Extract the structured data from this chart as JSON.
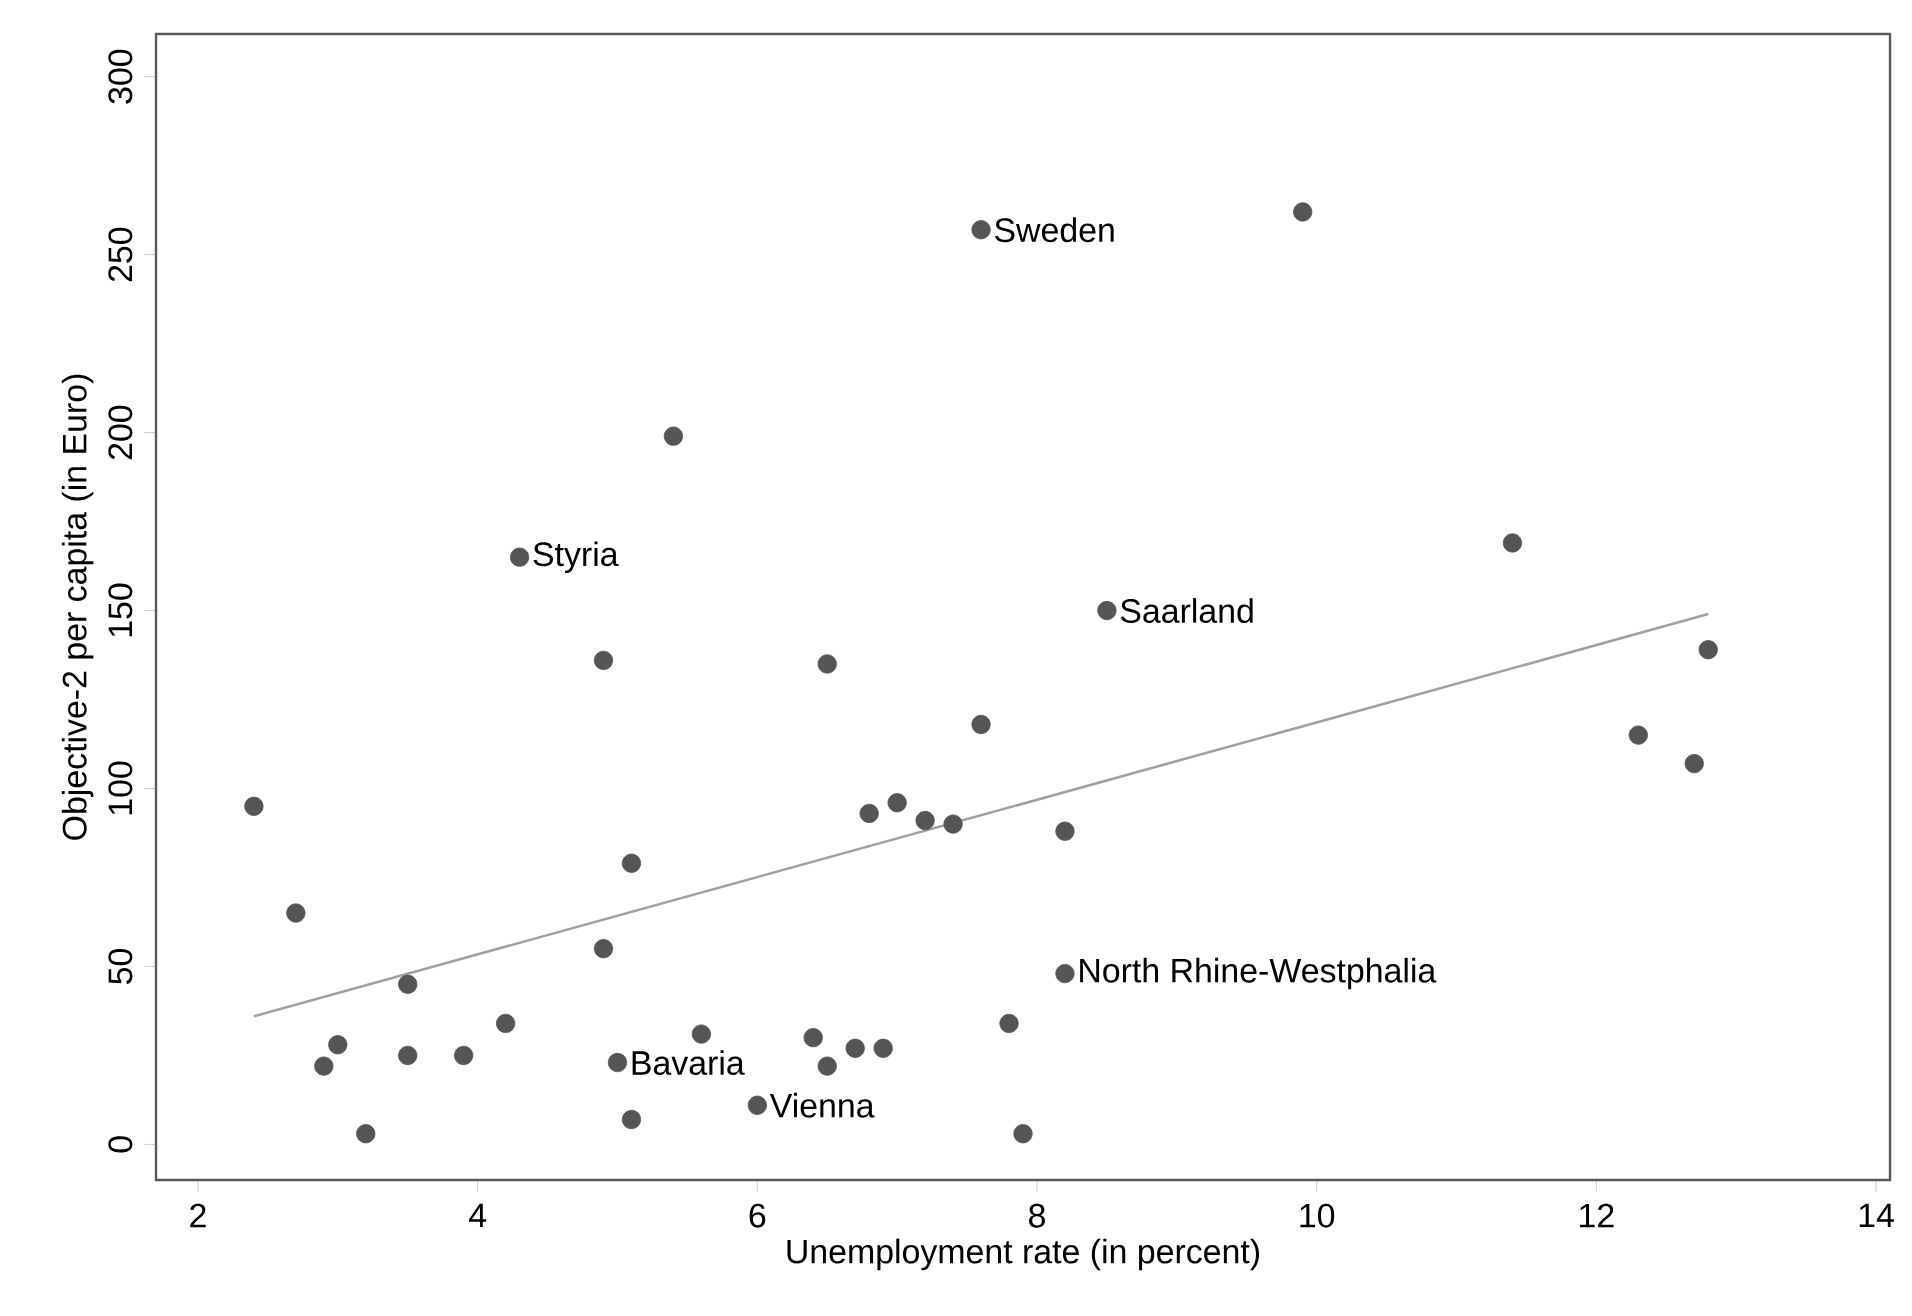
{
  "chart_data": {
    "type": "scatter",
    "xlabel": "Unemployment rate (in percent)",
    "ylabel": "Objective-2 per capita (in Euro)",
    "xlim": [
      1.7,
      14.1
    ],
    "ylim": [
      -10,
      312
    ],
    "xticks": [
      2,
      4,
      6,
      8,
      10,
      12,
      14
    ],
    "yticks": [
      0,
      50,
      100,
      150,
      200,
      250,
      300
    ],
    "grid": false,
    "marker": "circle",
    "series": [
      {
        "color": "#555555",
        "x": [
          2.4,
          2.7,
          2.9,
          3.0,
          3.2,
          3.5,
          3.5,
          3.9,
          4.2,
          4.3,
          4.9,
          4.9,
          5.0,
          5.1,
          5.1,
          5.4,
          5.6,
          6.0,
          6.4,
          6.5,
          6.5,
          6.7,
          6.8,
          6.9,
          7.0,
          7.2,
          7.4,
          7.6,
          7.6,
          7.8,
          7.9,
          8.2,
          8.2,
          8.5,
          9.9,
          11.4,
          12.3,
          12.7,
          12.8
        ],
        "values": [
          95,
          65,
          22,
          28,
          3,
          45,
          25,
          25,
          34,
          165,
          136,
          55,
          23,
          79,
          7,
          199,
          31,
          11,
          30,
          22,
          135,
          27,
          93,
          27,
          96,
          91,
          90,
          118,
          257,
          34,
          3,
          88,
          48,
          150,
          262,
          169,
          115,
          107,
          139
        ]
      },
      {
        "type": "line",
        "color": "#a0a0a0",
        "marker": "none",
        "x": [
          2.4,
          12.8
        ],
        "values": [
          36,
          149
        ]
      }
    ],
    "annotations": [
      {
        "text": "Sweden",
        "x": 7.6,
        "y": 257
      },
      {
        "text": "Styria",
        "x": 4.3,
        "y": 165
      },
      {
        "text": "Saarland",
        "x": 8.5,
        "y": 150
      },
      {
        "text": "North Rhine-Westphalia",
        "x": 8.2,
        "y": 48
      },
      {
        "text": "Bavaria",
        "x": 5.0,
        "y": 23
      },
      {
        "text": "Vienna",
        "x": 6.0,
        "y": 11
      }
    ]
  }
}
